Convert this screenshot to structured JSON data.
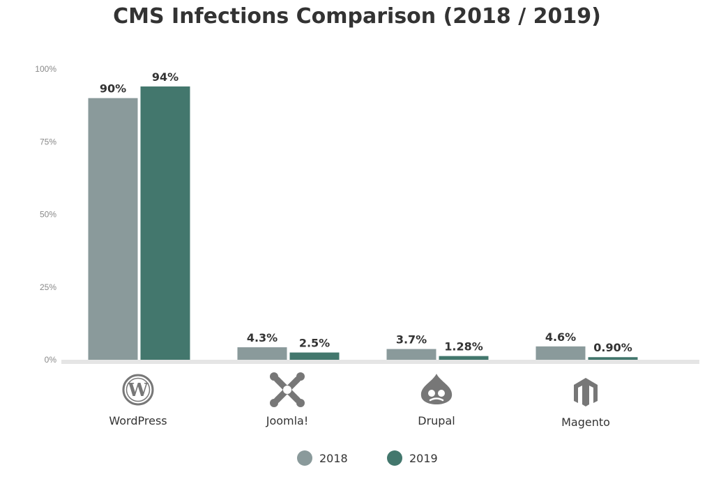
{
  "chart_data": {
    "type": "bar",
    "title": "CMS Infections Comparison (2018 / 2019)",
    "xlabel": "",
    "ylabel": "",
    "ylim": [
      0,
      100
    ],
    "yticks": [
      {
        "value": 0,
        "label": "0%"
      },
      {
        "value": 25,
        "label": "25%"
      },
      {
        "value": 50,
        "label": "50%"
      },
      {
        "value": 75,
        "label": "75%"
      },
      {
        "value": 100,
        "label": "100%"
      }
    ],
    "grid": false,
    "legend_position": "bottom-center",
    "categories": [
      "WordPress",
      "Joomla!",
      "Drupal",
      "Magento"
    ],
    "category_icons": [
      "wordpress-icon",
      "joomla-icon",
      "drupal-icon",
      "magento-icon"
    ],
    "series": [
      {
        "name": "2018",
        "color": "#8a9a9b",
        "values": [
          90,
          4.3,
          3.7,
          4.6
        ],
        "labels": [
          "90%",
          "4.3%",
          "3.7%",
          "4.6%"
        ]
      },
      {
        "name": "2019",
        "color": "#43776d",
        "values": [
          94,
          2.5,
          1.28,
          0.9
        ],
        "labels": [
          "94%",
          "2.5%",
          "1.28%",
          "0.90%"
        ]
      }
    ],
    "icon_color": "#777777",
    "baseline_color": "#e5e5e5",
    "tick_color": "#888888",
    "text_color": "#333333"
  }
}
